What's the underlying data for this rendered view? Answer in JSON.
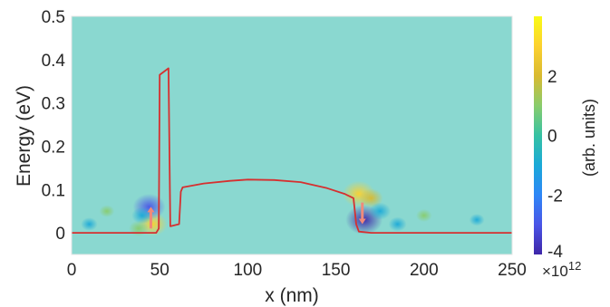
{
  "chart_data": {
    "type": "heatmap",
    "title": "",
    "xlabel": "x (nm)",
    "ylabel": "Energy (eV)",
    "xlim": [
      0,
      250
    ],
    "ylim": [
      -0.05,
      0.5
    ],
    "x_ticks": [
      0,
      50,
      100,
      150,
      200,
      250
    ],
    "y_ticks": [
      0,
      0.1,
      0.2,
      0.3,
      0.4,
      0.5
    ],
    "x_tick_labels": [
      "0",
      "50",
      "100",
      "150",
      "200",
      "250"
    ],
    "y_tick_labels": [
      "0",
      "0.1",
      "0.2",
      "0.3",
      "0.4",
      "0.5"
    ],
    "grid": false,
    "background_color": "#8ad8d0",
    "colorbar": {
      "label": "(arb. units)",
      "range": [
        -4,
        4
      ],
      "ticks": [
        -4,
        -2,
        0,
        2
      ],
      "tick_labels": [
        "-4",
        "-2",
        "0",
        "2"
      ],
      "multiplier": "×10",
      "multiplier_exponent": "12",
      "colormap": "parula",
      "colors": [
        "#3e26a8",
        "#4a55e7",
        "#2e87f7",
        "#1aa9d8",
        "#36c2a3",
        "#89cc6c",
        "#d9ba30",
        "#fcd12f",
        "#f9fb15"
      ]
    },
    "band_profile": {
      "name": "",
      "color": "#d62f2f",
      "points": [
        {
          "x": 0,
          "y": 0
        },
        {
          "x": 48,
          "y": 0
        },
        {
          "x": 49.5,
          "y": 0.01
        },
        {
          "x": 50,
          "y": 0.365
        },
        {
          "x": 55,
          "y": 0.38
        },
        {
          "x": 56,
          "y": 0.015
        },
        {
          "x": 61,
          "y": 0.02
        },
        {
          "x": 62,
          "y": 0.095
        },
        {
          "x": 63,
          "y": 0.105
        },
        {
          "x": 75,
          "y": 0.114
        },
        {
          "x": 90,
          "y": 0.12
        },
        {
          "x": 100,
          "y": 0.123
        },
        {
          "x": 115,
          "y": 0.122
        },
        {
          "x": 130,
          "y": 0.117
        },
        {
          "x": 145,
          "y": 0.103
        },
        {
          "x": 155,
          "y": 0.09
        },
        {
          "x": 160,
          "y": 0.08
        },
        {
          "x": 161.5,
          "y": 0.02
        },
        {
          "x": 163,
          "y": 0.003
        },
        {
          "x": 170,
          "y": 0
        },
        {
          "x": 250,
          "y": 0
        }
      ]
    },
    "arrows": [
      {
        "x": 45,
        "y_from": 0.01,
        "y_to": 0.06,
        "direction": "up",
        "color": "#f08a7a"
      },
      {
        "x": 165,
        "y_from": 0.07,
        "y_to": 0.02,
        "direction": "down",
        "color": "#f08a7a"
      }
    ],
    "hotspots": [
      {
        "x": 46,
        "y": 0.02,
        "value": 2.6
      },
      {
        "x": 44,
        "y": 0.06,
        "value": -3.0
      },
      {
        "x": 40,
        "y": 0.04,
        "value": -1.4
      },
      {
        "x": 38,
        "y": 0.01,
        "value": 1.2
      },
      {
        "x": 10,
        "y": 0.02,
        "value": -0.8
      },
      {
        "x": 20,
        "y": 0.05,
        "value": 0.6
      },
      {
        "x": 163,
        "y": 0.09,
        "value": 3.0
      },
      {
        "x": 166,
        "y": 0.03,
        "value": -3.6
      },
      {
        "x": 170,
        "y": 0.08,
        "value": 1.8
      },
      {
        "x": 175,
        "y": 0.05,
        "value": -1.5
      },
      {
        "x": 185,
        "y": 0.02,
        "value": -1.0
      },
      {
        "x": 200,
        "y": 0.04,
        "value": 0.7
      },
      {
        "x": 230,
        "y": 0.03,
        "value": -0.6
      }
    ]
  }
}
